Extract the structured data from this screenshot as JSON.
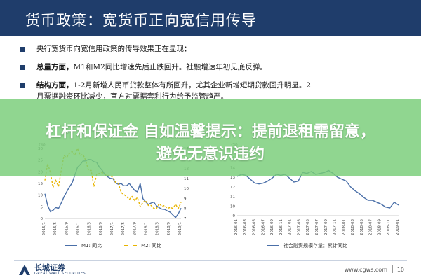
{
  "header": {
    "title": "货币政策：宽货币正向宽信用传导"
  },
  "bullets": [
    {
      "bold": "",
      "text": "央行宽货币向宽信用政策的传导效果正在显现：",
      "cont": ""
    },
    {
      "bold": "总量方面，",
      "text": "M1和M2同比增速先后止跌回升。社融增速年初见底反弹。",
      "cont": ""
    },
    {
      "bold": "结构方面，",
      "text": "1-2月新增人民币贷款整体有所回升，尤其企业新增短期贷款回升明显。2",
      "cont": "月票据融资环比减少，官方对票据套利行为给予监管趋严。"
    }
  ],
  "banner": {
    "line1": "杠杆和保证金 自如温馨提示：提前退租需留意，",
    "line2": "避免无意识违约"
  },
  "colors": {
    "header": "#1f3d6b",
    "m1": "#4a6fa8",
    "m2": "#e8b400",
    "social": "#4a6fa8",
    "banner": "#78cd78"
  },
  "chart_data": [
    {
      "type": "line",
      "title": "",
      "left_unit": "(%)",
      "yticks_left": [
        "0",
        "5",
        "10",
        "15",
        "20",
        "25",
        "30"
      ],
      "yticks_right": [
        "7",
        "8",
        "9",
        "10",
        "11",
        "12",
        "13",
        "14"
      ],
      "xticks": [
        "2015/1",
        "2015/5",
        "2015/9",
        "2016/1",
        "2016/5",
        "2016/9",
        "2017/1",
        "2017/5",
        "2017/9",
        "2018/1",
        "2018/5",
        "2018/9",
        "2019/1"
      ],
      "ylim_left": [
        0,
        30
      ],
      "ylim_right": [
        7,
        14
      ],
      "series": [
        {
          "name": "M1: 同比",
          "axis": "left",
          "values": [
            10.6,
            5.6,
            2.9,
            3.5,
            4.7,
            4.3,
            6.6,
            9.3,
            11.4,
            13.5,
            15.2,
            18.6,
            22.0,
            23.1,
            24.6,
            24.7,
            25.3,
            25.2,
            24.3,
            24.1,
            22.0,
            20.7,
            18.8,
            17.9,
            17.2,
            17.0,
            15.2,
            14.6,
            15.0,
            14.0,
            14.0,
            15.0,
            13.4,
            12.0,
            11.4,
            15.0,
            8.5,
            7.1,
            6.0,
            6.6,
            7.0,
            5.4,
            4.6,
            4.0,
            3.9,
            3.2,
            2.7,
            1.5,
            0.4,
            2.0,
            4.4
          ]
        },
        {
          "name": "M2: 同比",
          "axis": "right",
          "values": [
            10.8,
            12.5,
            11.6,
            10.1,
            10.8,
            10.2,
            11.8,
            13.3,
            13.1,
            13.5,
            13.7,
            13.3,
            14.0,
            13.3,
            13.4,
            12.8,
            11.8,
            11.8,
            10.2,
            11.4,
            11.5,
            11.6,
            11.4,
            11.3,
            11.3,
            11.1,
            10.6,
            10.5,
            9.6,
            9.4,
            9.2,
            8.9,
            9.2,
            8.8,
            9.1,
            8.2,
            8.6,
            8.8,
            8.3,
            8.3,
            8.0,
            8.0,
            8.5,
            8.2,
            8.3,
            8.0,
            8.1,
            8.0,
            8.4,
            8.0,
            8.6
          ]
        }
      ]
    },
    {
      "type": "line",
      "title": "",
      "left_unit": "(%)",
      "yticks": [
        "9",
        "10",
        "11",
        "12",
        "13",
        "14",
        "15",
        "16"
      ],
      "xticks": [
        "2016-01",
        "2016-03",
        "2016-05",
        "2016-07",
        "2016-09",
        "2016-11",
        "2017-01",
        "2017-03",
        "2017-05",
        "2017-07",
        "2017-09",
        "2017-11",
        "2018-01",
        "2018-03",
        "2018-05",
        "2018-07",
        "2018-09",
        "2018-11",
        "2019-01"
      ],
      "ylim": [
        9,
        16
      ],
      "series": [
        {
          "name": "社会融资规模存量：累计同比",
          "values": [
            13.1,
            13.3,
            13.2,
            12.8,
            12.4,
            12.3,
            12.4,
            12.6,
            12.9,
            13.3,
            13.2,
            13.3,
            12.9,
            12.5,
            12.6,
            13.5,
            13.4,
            13.6,
            13.3,
            13.4,
            13.5,
            13.7,
            13.4,
            13.0,
            12.8,
            12.6,
            12.0,
            11.6,
            11.3,
            10.9,
            10.6,
            10.6,
            10.4,
            10.2,
            9.9,
            9.8,
            10.4,
            10.1
          ]
        }
      ]
    }
  ],
  "footer": {
    "logo_cn": "长城证券",
    "logo_en": "GREAT WALL SECURITIES",
    "url": "www.cgws.com",
    "page": "10"
  }
}
